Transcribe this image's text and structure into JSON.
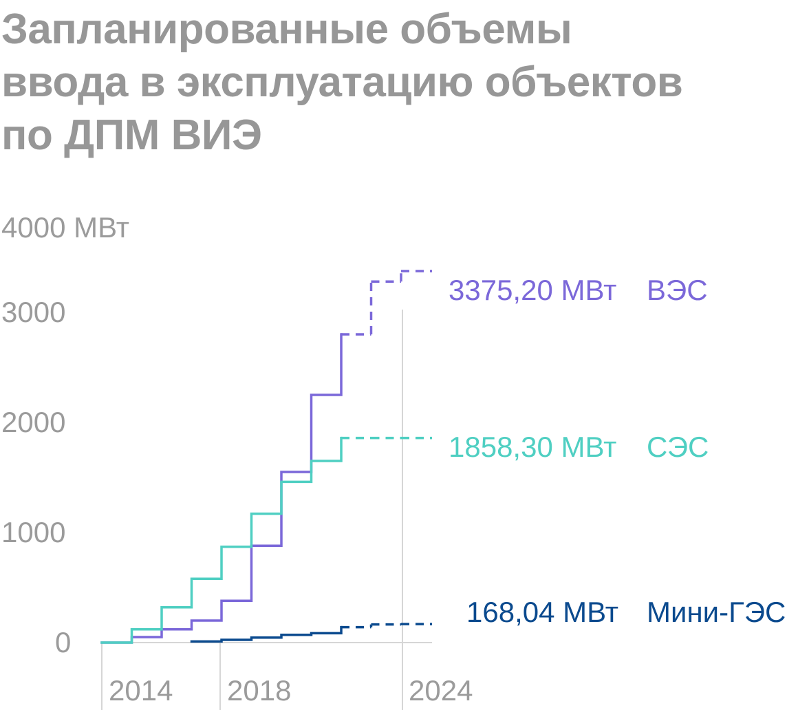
{
  "title_lines": [
    "Запланированные объемы",
    "ввода в эксплуатацию объектов",
    "по ДПМ ВИЭ"
  ],
  "chart_data": {
    "type": "line",
    "step": true,
    "title": "Запланированные объемы ввода в эксплуатацию объектов по ДПМ ВИЭ",
    "y_unit": "МВт",
    "ylim": [
      0,
      4000
    ],
    "y_ticks": [
      {
        "value": 0,
        "label": "0"
      },
      {
        "value": 1000,
        "label": "1000"
      },
      {
        "value": 2000,
        "label": "2000"
      },
      {
        "value": 3000,
        "label": "3000"
      },
      {
        "value": 4000,
        "label": "4000 МВт"
      }
    ],
    "x_ticks": [
      {
        "value": 2014,
        "label": "2014"
      },
      {
        "value": 2018,
        "label": "2018"
      },
      {
        "value": 2024,
        "label": "2024"
      }
    ],
    "xlim": [
      2014,
      2025
    ],
    "series": [
      {
        "name": "ВЭС",
        "end_label": "3375,20 МВт",
        "color": "#7b68d9",
        "x": [
          2014,
          2015,
          2016,
          2017,
          2018,
          2019,
          2020,
          2021,
          2022,
          2023,
          2024
        ],
        "y": [
          0,
          50,
          120,
          200,
          380,
          880,
          1550,
          2250,
          2800,
          3280,
          3375.2
        ],
        "dashed_from": 2022
      },
      {
        "name": "СЭС",
        "end_label": "1858,30 МВт",
        "color": "#4fcfc2",
        "x": [
          2014,
          2015,
          2016,
          2017,
          2018,
          2019,
          2020,
          2021,
          2022,
          2023,
          2024
        ],
        "y": [
          0,
          120,
          320,
          580,
          870,
          1170,
          1460,
          1650,
          1858.3,
          1858.3,
          1858.3
        ],
        "dashed_from": 2022
      },
      {
        "name": "Мини-ГЭС",
        "end_label": "168,04 МВт",
        "color": "#0b4a8e",
        "x": [
          2017,
          2018,
          2019,
          2020,
          2021,
          2022,
          2023,
          2024
        ],
        "y": [
          10,
          25,
          45,
          70,
          85,
          140,
          165,
          168.04
        ],
        "dashed_from": 2022
      }
    ],
    "grid": {
      "vertical_lines_at": [
        2014,
        2018,
        2024
      ],
      "baseline": true
    }
  }
}
